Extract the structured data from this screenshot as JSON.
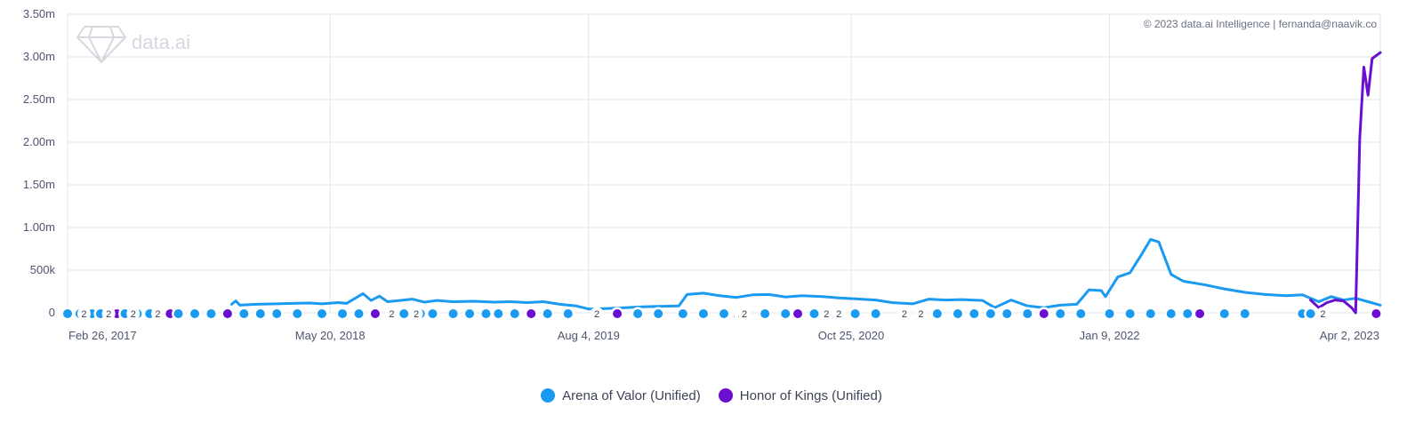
{
  "copyright": "© 2023 data.ai Intelligence | fernanda@naavik.co",
  "watermark": "data.ai",
  "colors": {
    "arena": "#1a9af0",
    "honor": "#6a0fd1",
    "grid": "#e2e4ea"
  },
  "chart_data": {
    "type": "line",
    "title": "",
    "xlabel": "",
    "ylabel": "",
    "ylim": [
      0,
      3500000
    ],
    "y_ticks": [
      0,
      500000,
      1000000,
      1500000,
      2000000,
      2500000,
      3000000,
      3500000
    ],
    "y_tick_labels": [
      "0",
      "500k",
      "1.00m",
      "1.50m",
      "2.00m",
      "2.50m",
      "3.00m",
      "3.50m"
    ],
    "x_range": [
      "2017-02-26",
      "2023-04-16"
    ],
    "x_tick_labels": [
      {
        "date": "2017-02-26",
        "label": "Feb 26, 2017"
      },
      {
        "date": "2018-05-20",
        "label": "May 20, 2018"
      },
      {
        "date": "2019-08-04",
        "label": "Aug 4, 2019"
      },
      {
        "date": "2020-10-25",
        "label": "Oct 25, 2020"
      },
      {
        "date": "2022-01-09",
        "label": "Jan 9, 2022"
      },
      {
        "date": "2023-04-02",
        "label": "Apr 2, 2023"
      }
    ],
    "grid": true,
    "legend_position": "bottom-center",
    "series": [
      {
        "name": "Arena of Valor (Unified)",
        "color": "#1a9af0",
        "points": [
          [
            "2017-12-03",
            100000
          ],
          [
            "2017-12-10",
            140000
          ],
          [
            "2017-12-17",
            90000
          ],
          [
            "2018-01-14",
            100000
          ],
          [
            "2018-02-18",
            105000
          ],
          [
            "2018-03-18",
            110000
          ],
          [
            "2018-04-15",
            115000
          ],
          [
            "2018-05-06",
            105000
          ],
          [
            "2018-06-03",
            120000
          ],
          [
            "2018-06-17",
            110000
          ],
          [
            "2018-07-15",
            225000
          ],
          [
            "2018-07-29",
            145000
          ],
          [
            "2018-08-12",
            195000
          ],
          [
            "2018-08-26",
            130000
          ],
          [
            "2018-09-16",
            145000
          ],
          [
            "2018-10-07",
            160000
          ],
          [
            "2018-10-28",
            125000
          ],
          [
            "2018-11-18",
            145000
          ],
          [
            "2018-12-16",
            130000
          ],
          [
            "2019-01-20",
            135000
          ],
          [
            "2019-02-24",
            125000
          ],
          [
            "2019-03-24",
            130000
          ],
          [
            "2019-04-21",
            120000
          ],
          [
            "2019-05-19",
            130000
          ],
          [
            "2019-06-16",
            100000
          ],
          [
            "2019-07-14",
            80000
          ],
          [
            "2019-08-04",
            45000
          ],
          [
            "2019-09-01",
            50000
          ],
          [
            "2019-10-06",
            60000
          ],
          [
            "2019-11-03",
            70000
          ],
          [
            "2019-12-01",
            75000
          ],
          [
            "2020-01-05",
            80000
          ],
          [
            "2020-01-19",
            215000
          ],
          [
            "2020-02-16",
            230000
          ],
          [
            "2020-03-15",
            200000
          ],
          [
            "2020-04-12",
            180000
          ],
          [
            "2020-05-10",
            210000
          ],
          [
            "2020-06-07",
            215000
          ],
          [
            "2020-07-05",
            185000
          ],
          [
            "2020-08-02",
            200000
          ],
          [
            "2020-09-06",
            190000
          ],
          [
            "2020-10-04",
            175000
          ],
          [
            "2020-11-01",
            165000
          ],
          [
            "2020-12-06",
            150000
          ],
          [
            "2021-01-03",
            120000
          ],
          [
            "2021-02-07",
            105000
          ],
          [
            "2021-03-07",
            160000
          ],
          [
            "2021-04-04",
            150000
          ],
          [
            "2021-05-02",
            155000
          ],
          [
            "2021-06-06",
            145000
          ],
          [
            "2021-06-27",
            60000
          ],
          [
            "2021-07-25",
            150000
          ],
          [
            "2021-08-22",
            80000
          ],
          [
            "2021-09-19",
            60000
          ],
          [
            "2021-10-17",
            90000
          ],
          [
            "2021-11-14",
            100000
          ],
          [
            "2021-12-05",
            270000
          ],
          [
            "2021-12-26",
            260000
          ],
          [
            "2022-01-02",
            190000
          ],
          [
            "2022-01-23",
            420000
          ],
          [
            "2022-02-13",
            470000
          ],
          [
            "2022-03-06",
            700000
          ],
          [
            "2022-03-20",
            860000
          ],
          [
            "2022-04-03",
            830000
          ],
          [
            "2022-04-24",
            450000
          ],
          [
            "2022-05-15",
            370000
          ],
          [
            "2022-06-19",
            330000
          ],
          [
            "2022-07-24",
            280000
          ],
          [
            "2022-08-28",
            240000
          ],
          [
            "2022-10-02",
            215000
          ],
          [
            "2022-11-06",
            200000
          ],
          [
            "2022-12-04",
            210000
          ],
          [
            "2023-01-01",
            130000
          ],
          [
            "2023-01-22",
            190000
          ],
          [
            "2023-02-12",
            150000
          ],
          [
            "2023-03-05",
            170000
          ],
          [
            "2023-03-26",
            130000
          ],
          [
            "2023-04-16",
            90000
          ]
        ]
      },
      {
        "name": "Honor of Kings (Unified)",
        "color": "#6a0fd1",
        "points": [
          [
            "2022-12-18",
            150000
          ],
          [
            "2023-01-01",
            60000
          ],
          [
            "2023-01-15",
            120000
          ],
          [
            "2023-01-29",
            150000
          ],
          [
            "2023-02-12",
            140000
          ],
          [
            "2023-02-26",
            60000
          ],
          [
            "2023-03-05",
            0
          ],
          [
            "2023-03-12",
            2050000
          ],
          [
            "2023-03-19",
            2880000
          ],
          [
            "2023-03-26",
            2550000
          ],
          [
            "2023-04-02",
            2980000
          ],
          [
            "2023-04-16",
            3050000
          ]
        ]
      }
    ],
    "event_labels": [
      {
        "date": "2017-03-26",
        "label": "2"
      },
      {
        "date": "2017-05-07",
        "label": "2"
      },
      {
        "date": "2017-06-18",
        "label": "2"
      },
      {
        "date": "2017-07-30",
        "label": "2"
      },
      {
        "date": "2018-09-02",
        "label": "2"
      },
      {
        "date": "2018-10-14",
        "label": "2"
      },
      {
        "date": "2019-08-18",
        "label": "2"
      },
      {
        "date": "2020-04-12",
        "label": "2"
      },
      {
        "date": "2020-04-19",
        "label": "2"
      },
      {
        "date": "2020-04-26",
        "label": "2"
      },
      {
        "date": "2020-09-13",
        "label": "2"
      },
      {
        "date": "2020-10-04",
        "label": "2"
      },
      {
        "date": "2021-01-24",
        "label": "2"
      },
      {
        "date": "2021-02-21",
        "label": "2"
      },
      {
        "date": "2023-01-08",
        "label": "2"
      }
    ],
    "event_markers": [
      {
        "date": "2017-02-26",
        "series": "Arena of Valor (Unified)"
      },
      {
        "date": "2017-03-19",
        "series": "Arena of Valor (Unified)"
      },
      {
        "date": "2017-04-09",
        "series": "Arena of Valor (Unified)"
      },
      {
        "date": "2017-04-23",
        "series": "Arena of Valor (Unified)"
      },
      {
        "date": "2017-05-21",
        "series": "Honor of Kings (Unified)"
      },
      {
        "date": "2017-06-04",
        "series": "Arena of Valor (Unified)"
      },
      {
        "date": "2017-06-25",
        "series": "Arena of Valor (Unified)"
      },
      {
        "date": "2017-07-16",
        "series": "Arena of Valor (Unified)"
      },
      {
        "date": "2017-08-20",
        "series": "Honor of Kings (Unified)"
      },
      {
        "date": "2017-09-03",
        "series": "Arena of Valor (Unified)"
      },
      {
        "date": "2017-10-01",
        "series": "Arena of Valor (Unified)"
      },
      {
        "date": "2017-10-29",
        "series": "Arena of Valor (Unified)"
      },
      {
        "date": "2017-11-26",
        "series": "Honor of Kings (Unified)"
      },
      {
        "date": "2017-12-24",
        "series": "Arena of Valor (Unified)"
      },
      {
        "date": "2018-01-21",
        "series": "Arena of Valor (Unified)"
      },
      {
        "date": "2018-02-18",
        "series": "Arena of Valor (Unified)"
      },
      {
        "date": "2018-03-25",
        "series": "Arena of Valor (Unified)"
      },
      {
        "date": "2018-05-06",
        "series": "Arena of Valor (Unified)"
      },
      {
        "date": "2018-06-10",
        "series": "Arena of Valor (Unified)"
      },
      {
        "date": "2018-07-08",
        "series": "Arena of Valor (Unified)"
      },
      {
        "date": "2018-08-05",
        "series": "Honor of Kings (Unified)"
      },
      {
        "date": "2018-09-23",
        "series": "Arena of Valor (Unified)"
      },
      {
        "date": "2018-10-21",
        "series": "Arena of Valor (Unified)"
      },
      {
        "date": "2018-11-11",
        "series": "Arena of Valor (Unified)"
      },
      {
        "date": "2018-12-16",
        "series": "Arena of Valor (Unified)"
      },
      {
        "date": "2019-01-13",
        "series": "Arena of Valor (Unified)"
      },
      {
        "date": "2019-02-10",
        "series": "Arena of Valor (Unified)"
      },
      {
        "date": "2019-03-03",
        "series": "Arena of Valor (Unified)"
      },
      {
        "date": "2019-03-31",
        "series": "Arena of Valor (Unified)"
      },
      {
        "date": "2019-04-28",
        "series": "Honor of Kings (Unified)"
      },
      {
        "date": "2019-05-26",
        "series": "Arena of Valor (Unified)"
      },
      {
        "date": "2019-06-30",
        "series": "Arena of Valor (Unified)"
      },
      {
        "date": "2019-09-22",
        "series": "Honor of Kings (Unified)"
      },
      {
        "date": "2019-10-27",
        "series": "Arena of Valor (Unified)"
      },
      {
        "date": "2019-12-01",
        "series": "Arena of Valor (Unified)"
      },
      {
        "date": "2020-01-12",
        "series": "Arena of Valor (Unified)"
      },
      {
        "date": "2020-02-16",
        "series": "Arena of Valor (Unified)"
      },
      {
        "date": "2020-03-22",
        "series": "Arena of Valor (Unified)"
      },
      {
        "date": "2020-05-31",
        "series": "Arena of Valor (Unified)"
      },
      {
        "date": "2020-07-05",
        "series": "Arena of Valor (Unified)"
      },
      {
        "date": "2020-07-26",
        "series": "Honor of Kings (Unified)"
      },
      {
        "date": "2020-08-23",
        "series": "Arena of Valor (Unified)"
      },
      {
        "date": "2020-11-01",
        "series": "Arena of Valor (Unified)"
      },
      {
        "date": "2020-12-06",
        "series": "Arena of Valor (Unified)"
      },
      {
        "date": "2021-03-21",
        "series": "Arena of Valor (Unified)"
      },
      {
        "date": "2021-04-25",
        "series": "Arena of Valor (Unified)"
      },
      {
        "date": "2021-05-23",
        "series": "Arena of Valor (Unified)"
      },
      {
        "date": "2021-06-20",
        "series": "Arena of Valor (Unified)"
      },
      {
        "date": "2021-07-18",
        "series": "Arena of Valor (Unified)"
      },
      {
        "date": "2021-08-22",
        "series": "Arena of Valor (Unified)"
      },
      {
        "date": "2021-09-19",
        "series": "Honor of Kings (Unified)"
      },
      {
        "date": "2021-10-17",
        "series": "Arena of Valor (Unified)"
      },
      {
        "date": "2021-11-21",
        "series": "Arena of Valor (Unified)"
      },
      {
        "date": "2022-01-09",
        "series": "Arena of Valor (Unified)"
      },
      {
        "date": "2022-02-13",
        "series": "Arena of Valor (Unified)"
      },
      {
        "date": "2022-03-20",
        "series": "Arena of Valor (Unified)"
      },
      {
        "date": "2022-04-24",
        "series": "Arena of Valor (Unified)"
      },
      {
        "date": "2022-05-22",
        "series": "Arena of Valor (Unified)"
      },
      {
        "date": "2022-06-12",
        "series": "Honor of Kings (Unified)"
      },
      {
        "date": "2022-07-24",
        "series": "Arena of Valor (Unified)"
      },
      {
        "date": "2022-08-28",
        "series": "Arena of Valor (Unified)"
      },
      {
        "date": "2022-12-04",
        "series": "Arena of Valor (Unified)"
      },
      {
        "date": "2022-12-18",
        "series": "Arena of Valor (Unified)"
      },
      {
        "date": "2023-04-09",
        "series": "Honor of Kings (Unified)"
      }
    ]
  },
  "legend": {
    "items": [
      {
        "label": "Arena of Valor (Unified)",
        "color": "#1a9af0"
      },
      {
        "label": "Honor of Kings (Unified)",
        "color": "#6a0fd1"
      }
    ]
  }
}
